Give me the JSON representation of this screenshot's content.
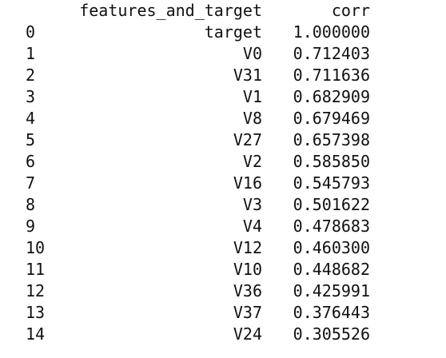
{
  "table": {
    "columns": [
      "features_and_target",
      "corr"
    ],
    "rows": [
      {
        "index": "0",
        "feature": "target",
        "corr": "1.000000"
      },
      {
        "index": "1",
        "feature": "V0",
        "corr": "0.712403"
      },
      {
        "index": "2",
        "feature": "V31",
        "corr": "0.711636"
      },
      {
        "index": "3",
        "feature": "V1",
        "corr": "0.682909"
      },
      {
        "index": "4",
        "feature": "V8",
        "corr": "0.679469"
      },
      {
        "index": "5",
        "feature": "V27",
        "corr": "0.657398"
      },
      {
        "index": "6",
        "feature": "V2",
        "corr": "0.585850"
      },
      {
        "index": "7",
        "feature": "V16",
        "corr": "0.545793"
      },
      {
        "index": "8",
        "feature": "V3",
        "corr": "0.501622"
      },
      {
        "index": "9",
        "feature": "V4",
        "corr": "0.478683"
      },
      {
        "index": "10",
        "feature": "V12",
        "corr": "0.460300"
      },
      {
        "index": "11",
        "feature": "V10",
        "corr": "0.448682"
      },
      {
        "index": "12",
        "feature": "V36",
        "corr": "0.425991"
      },
      {
        "index": "13",
        "feature": "V37",
        "corr": "0.376443"
      },
      {
        "index": "14",
        "feature": "V24",
        "corr": "0.305526"
      }
    ]
  }
}
